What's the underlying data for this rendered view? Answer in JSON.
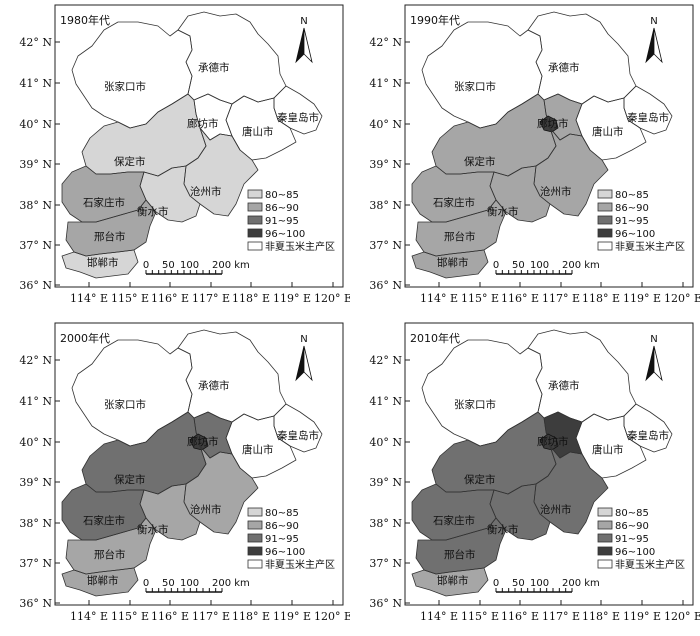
{
  "axes": {
    "lat_labels": [
      "42° N",
      "41° N",
      "40° N",
      "39° N",
      "38° N",
      "37° N",
      "36° N"
    ],
    "lon_labels": [
      "114° E",
      "115° E",
      "116° E",
      "117° E",
      "118° E",
      "119° E",
      "120° E"
    ]
  },
  "north_label": "N",
  "cities": [
    "张家口市",
    "承德市",
    "秦皇岛市",
    "唐山市",
    "廊坊市",
    "保定市",
    "沧州市",
    "衡水市",
    "石家庄市",
    "邢台市",
    "邯郸市"
  ],
  "legend": {
    "items": [
      {
        "label": "80~85",
        "color": "#d6d6d6"
      },
      {
        "label": "86~90",
        "color": "#a6a6a6"
      },
      {
        "label": "91~95",
        "color": "#707070"
      },
      {
        "label": "96~100",
        "color": "#3d3d3d"
      },
      {
        "label": "非夏玉米主产区",
        "color": "#ffffff"
      }
    ]
  },
  "scale": {
    "ticks": [
      "0",
      "50",
      "100",
      "200 km"
    ]
  },
  "panels": [
    {
      "era": "1980年代"
    },
    {
      "era": "1990年代"
    },
    {
      "era": "2000年代"
    },
    {
      "era": "2010年代"
    }
  ]
}
